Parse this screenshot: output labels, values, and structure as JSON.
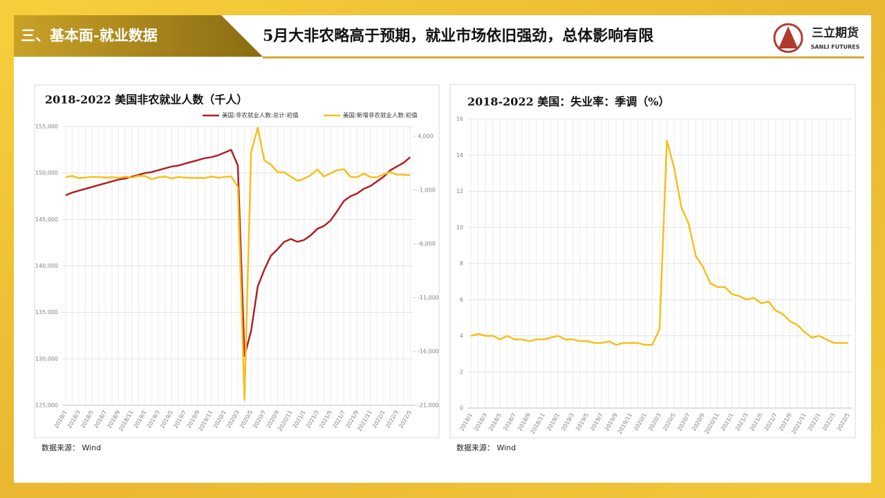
{
  "header": {
    "section": "三、基本面-就业数据",
    "title": "5月大非农略高于预期，就业市场依旧强劲，总体影响有限",
    "logo_text": "三立期货",
    "logo_subtext": "SANLI FUTURES"
  },
  "chart_data": [
    {
      "type": "line",
      "title": "2018-2022 美国非农就业人数（千人）",
      "categories": [
        "2018/1",
        null,
        "2018/3",
        null,
        "2018/5",
        null,
        "2018/7",
        null,
        "2018/9",
        null,
        "2018/11",
        null,
        "2019/1",
        null,
        "2019/3",
        null,
        "2019/5",
        null,
        "2019/7",
        null,
        "2019/9",
        null,
        "2019/11",
        null,
        "2020/1",
        null,
        "2020/3",
        null,
        "2020/5",
        null,
        "2020/7",
        null,
        "2020/9",
        null,
        "2020/11",
        null,
        "2021/1",
        null,
        "2021/3",
        null,
        "2021/5",
        null,
        "2021/7",
        null,
        "2021/9",
        null,
        "2021/11",
        null,
        "2022/1",
        null,
        "2022/3",
        null,
        "2022/5"
      ],
      "series": [
        {
          "name": "美国:非农就业人数:总计:初值",
          "color": "#b01e23",
          "values": [
            147600,
            147900,
            148100,
            148300,
            148500,
            148700,
            148900,
            149100,
            149300,
            149400,
            149600,
            149800,
            150000,
            150100,
            150300,
            150500,
            150700,
            150800,
            151000,
            151200,
            151400,
            151600,
            151700,
            151900,
            152200,
            152500,
            150800,
            130300,
            133000,
            137800,
            139600,
            141100,
            141800,
            142600,
            142900,
            142600,
            142800,
            143300,
            144000,
            144300,
            144900,
            145900,
            147000,
            147500,
            147800,
            148300,
            148600,
            149100,
            149600,
            150300,
            150700,
            151100,
            151700
          ]
        },
        {
          "name": "美国:新增非农就业人数:初值",
          "color": "#f5c01a",
          "axis": "y2",
          "values": [
            200,
            313,
            103,
            164,
            223,
            213,
            157,
            201,
            134,
            250,
            155,
            312,
            304,
            20,
            196,
            263,
            75,
            224,
            164,
            130,
            136,
            128,
            266,
            145,
            225,
            273,
            -701,
            -20500,
            2509,
            4800,
            1763,
            1371,
            661,
            638,
            245,
            -140,
            49,
            379,
            916,
            266,
            559,
            850,
            943,
            235,
            194,
            531,
            210,
            199,
            467,
            678,
            431,
            428,
            390
          ]
        }
      ],
      "ylim": [
        125000,
        155000
      ],
      "yticks": [
        {
          "value": 125000,
          "label": "125,000"
        },
        {
          "value": 130000,
          "label": "130,000"
        },
        {
          "value": 135000,
          "label": "135,000"
        },
        {
          "value": 140000,
          "label": "140,000"
        },
        {
          "value": 145000,
          "label": "145,000"
        },
        {
          "value": 150000,
          "label": "150,000"
        },
        {
          "value": 155000,
          "label": "155,000"
        }
      ],
      "y2lim": [
        -21000,
        4900
      ],
      "y2ticks": [
        {
          "value": -21000,
          "label": "-21,000"
        },
        {
          "value": -16000,
          "label": "-16,000"
        },
        {
          "value": -11000,
          "label": "-11,000"
        },
        {
          "value": -6000,
          "label": "-6,000"
        },
        {
          "value": -1000,
          "label": "-1,000"
        },
        {
          "value": 4000,
          "label": "4,000"
        }
      ],
      "grid": true,
      "legend": "top",
      "source": "数据来源： Wind"
    },
    {
      "type": "line",
      "title": "2018-2022 美国：失业率：季调（%）",
      "categories": [
        "2018/1",
        null,
        "2018/3",
        null,
        "2018/5",
        null,
        "2018/7",
        null,
        "2018/9",
        null,
        "2018/11",
        null,
        "2019/1",
        null,
        "2019/3",
        null,
        "2019/5",
        null,
        "2019/7",
        null,
        "2019/9",
        null,
        "2019/11",
        null,
        "2020/1",
        null,
        "2020/3",
        null,
        "2020/5",
        null,
        "2020/7",
        null,
        "2020/9",
        null,
        "2020/11",
        null,
        "2021/1",
        null,
        "2021/3",
        null,
        "2021/5",
        null,
        "2021/7",
        null,
        "2021/9",
        null,
        "2021/11",
        null,
        "2022/1",
        null,
        "2022/3",
        null,
        "2022/5"
      ],
      "series": [
        {
          "color": "#f5c01a",
          "values": [
            4.0,
            4.1,
            4.0,
            4.0,
            3.8,
            4.0,
            3.8,
            3.8,
            3.7,
            3.8,
            3.8,
            3.9,
            4.0,
            3.8,
            3.8,
            3.7,
            3.7,
            3.6,
            3.6,
            3.7,
            3.5,
            3.6,
            3.6,
            3.6,
            3.5,
            3.5,
            4.4,
            14.8,
            13.3,
            11.1,
            10.2,
            8.4,
            7.8,
            6.9,
            6.7,
            6.7,
            6.3,
            6.2,
            6.0,
            6.1,
            5.8,
            5.9,
            5.4,
            5.2,
            4.8,
            4.6,
            4.2,
            3.9,
            4.0,
            3.8,
            3.6,
            3.6,
            3.6
          ]
        }
      ],
      "ylim": [
        0,
        16
      ],
      "yticks": [
        0,
        2,
        4,
        6,
        8,
        10,
        12,
        14,
        16
      ],
      "grid": true,
      "source": "数据来源： Wind"
    }
  ]
}
